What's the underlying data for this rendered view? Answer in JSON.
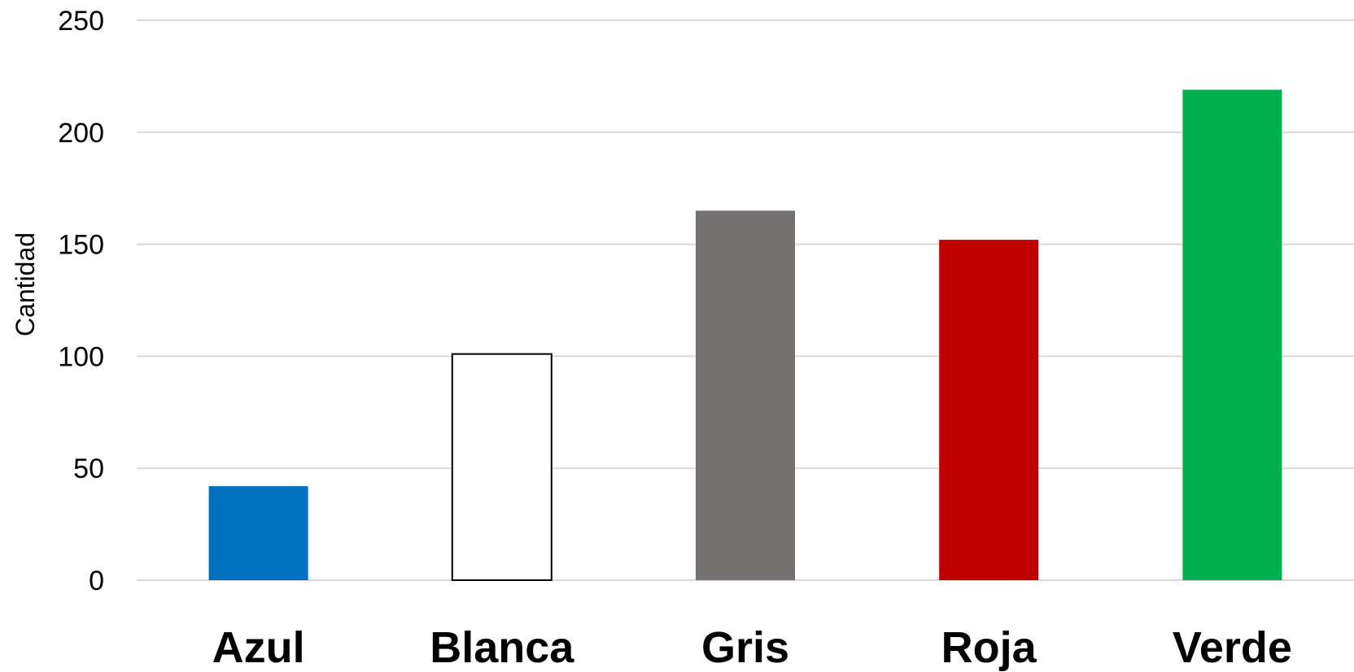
{
  "chart_data": {
    "type": "bar",
    "categories": [
      "Azul",
      "Blanca",
      "Gris",
      "Roja",
      "Verde"
    ],
    "values": [
      42,
      101,
      165,
      152,
      219
    ],
    "colors": [
      "#0070c0",
      "#ffffff",
      "#767171",
      "#c00000",
      "#00b050"
    ],
    "outline_colors": [
      "none",
      "#000000",
      "none",
      "none",
      "none"
    ],
    "title": "",
    "xlabel": "",
    "ylabel": "Cantidad",
    "ylim": [
      0,
      250
    ],
    "yticks": [
      0,
      50,
      100,
      150,
      200,
      250
    ],
    "grid": true,
    "legend": "none"
  }
}
